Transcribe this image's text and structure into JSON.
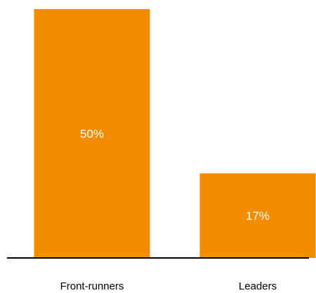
{
  "chart_data": {
    "type": "bar",
    "categories": [
      "Front-runners",
      "Leaders"
    ],
    "values": [
      50,
      17
    ],
    "data_labels": [
      "50%",
      "17%"
    ],
    "title": "",
    "xlabel": "",
    "ylabel": "",
    "ylim": [
      0,
      50
    ],
    "grid": false,
    "colors": {
      "bar": "#F28C00",
      "bar_label": "#FFFFFF",
      "axis": "#000000"
    }
  }
}
